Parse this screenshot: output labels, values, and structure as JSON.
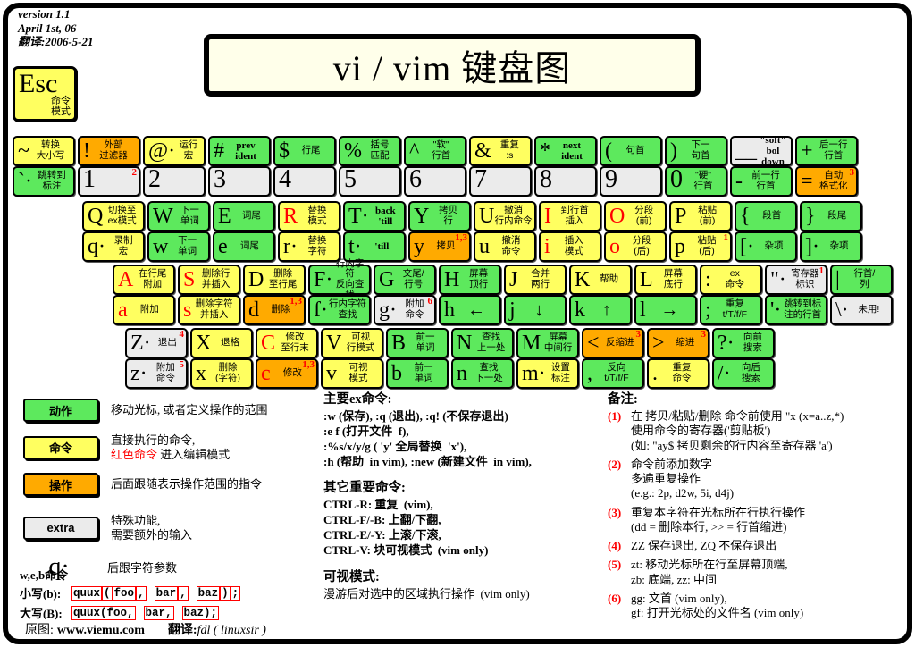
{
  "meta": {
    "line1": "version 1.1",
    "line2": "April 1st, 06",
    "line3": "翻译:2006-5-21"
  },
  "title": "vi / vim 键盘图",
  "esc": {
    "sym": "Esc",
    "label": "命令\n模式"
  },
  "colors": {
    "motion": "#5de95d",
    "command": "#ffff60",
    "operator": "#ffaa00",
    "extra": "#ebebeb",
    "red": "#ff0000"
  },
  "keyboard": {
    "rows": [
      [
        {
          "n": "tilde",
          "top": {
            "s": "~",
            "l": "转换\n大小写",
            "c": "y"
          },
          "bot": {
            "s": "`·",
            "l": "跳转到\n标注",
            "c": "g"
          }
        },
        {
          "n": "1",
          "top": {
            "s": "!",
            "l": "外部\n过滤器",
            "c": "o"
          },
          "bot": {
            "s": "1",
            "c": "n",
            "sup": "2"
          }
        },
        {
          "n": "2",
          "top": {
            "s": "@·",
            "l": "运行\n宏",
            "c": "y"
          },
          "bot": {
            "s": "2",
            "c": "n"
          }
        },
        {
          "n": "3",
          "top": {
            "s": "#",
            "l": "prev\nident",
            "c": "g"
          },
          "bot": {
            "s": "3",
            "c": "n"
          }
        },
        {
          "n": "4",
          "top": {
            "s": "$",
            "l": "行尾",
            "c": "g"
          },
          "bot": {
            "s": "4",
            "c": "n"
          }
        },
        {
          "n": "5",
          "top": {
            "s": "%",
            "l": "括号\n匹配",
            "c": "g"
          },
          "bot": {
            "s": "5",
            "c": "n"
          }
        },
        {
          "n": "6",
          "top": {
            "s": "^",
            "l": "\"软\"\n行首",
            "c": "g"
          },
          "bot": {
            "s": "6",
            "c": "n"
          }
        },
        {
          "n": "7",
          "top": {
            "s": "&",
            "l": "重复\n:s",
            "c": "y"
          },
          "bot": {
            "s": "7",
            "c": "n"
          }
        },
        {
          "n": "8",
          "top": {
            "s": "*",
            "l": "next\nident",
            "c": "g"
          },
          "bot": {
            "s": "8",
            "c": "n"
          }
        },
        {
          "n": "9",
          "top": {
            "s": "(",
            "l": "句首",
            "c": "g"
          },
          "bot": {
            "s": "9",
            "c": "n"
          }
        },
        {
          "n": "0",
          "top": {
            "s": ")",
            "l": "下一\n句首",
            "c": "g"
          },
          "bot": {
            "s": "0",
            "l": "\"硬\"\n行首",
            "c": "g"
          }
        },
        {
          "n": "minus",
          "top": {
            "s": "__",
            "l": "\"soft\" bol\ndown",
            "c": "e"
          },
          "bot": {
            "s": "-",
            "l": "前一行\n行首",
            "c": "g"
          }
        },
        {
          "n": "equals",
          "top": {
            "s": "+",
            "l": "后一行\n行首",
            "c": "g"
          },
          "bot": {
            "s": "=",
            "l": "自动\n格式化",
            "c": "o",
            "sup": "3"
          }
        }
      ],
      [
        {
          "n": "q",
          "top": {
            "s": "Q",
            "l": "切换至\nex模式",
            "c": "y"
          },
          "bot": {
            "s": "q·",
            "l": "录制\n宏",
            "c": "y"
          }
        },
        {
          "n": "w",
          "top": {
            "s": "W",
            "l": "下一\n单词",
            "c": "g"
          },
          "bot": {
            "s": "w",
            "l": "下一\n单词",
            "c": "g"
          }
        },
        {
          "n": "e",
          "top": {
            "s": "E",
            "l": "词尾",
            "c": "g"
          },
          "bot": {
            "s": "e",
            "l": "词尾",
            "c": "g"
          }
        },
        {
          "n": "r",
          "top": {
            "s": "R",
            "l": "替换\n模式",
            "c": "y",
            "red": true
          },
          "bot": {
            "s": "r·",
            "l": "替换\n字符",
            "c": "y"
          }
        },
        {
          "n": "t",
          "top": {
            "s": "T·",
            "l": "back\n'till",
            "c": "g"
          },
          "bot": {
            "s": "t·",
            "l": "'till",
            "c": "g"
          }
        },
        {
          "n": "y",
          "top": {
            "s": "Y",
            "l": "拷贝\n行",
            "c": "g"
          },
          "bot": {
            "s": "y",
            "l": "拷贝",
            "c": "o",
            "sup": "1,3"
          }
        },
        {
          "n": "u",
          "top": {
            "s": "U",
            "l": "撤消\n行内命令",
            "c": "y"
          },
          "bot": {
            "s": "u",
            "l": "撤消\n命令",
            "c": "y"
          }
        },
        {
          "n": "i",
          "top": {
            "s": "I",
            "l": "到行首\n插入",
            "c": "y",
            "red": true
          },
          "bot": {
            "s": "i",
            "l": "插入\n模式",
            "c": "y",
            "red": true
          }
        },
        {
          "n": "o",
          "top": {
            "s": "O",
            "l": "分段\n(前)",
            "c": "y",
            "red": true
          },
          "bot": {
            "s": "o",
            "l": "分段\n(后)",
            "c": "y",
            "red": true
          }
        },
        {
          "n": "p",
          "top": {
            "s": "P",
            "l": "粘贴\n(前)",
            "c": "y"
          },
          "bot": {
            "s": "p",
            "l": "粘贴\n(后)",
            "c": "y",
            "sup": "1"
          }
        },
        {
          "n": "bracket-left",
          "top": {
            "s": "{",
            "l": "段首",
            "c": "g"
          },
          "bot": {
            "s": "[·",
            "l": "杂项",
            "c": "g"
          }
        },
        {
          "n": "bracket-right",
          "top": {
            "s": "}",
            "l": "段尾",
            "c": "g"
          },
          "bot": {
            "s": "]·",
            "l": "杂项",
            "c": "g"
          }
        }
      ],
      [
        {
          "n": "a",
          "top": {
            "s": "A",
            "l": "在行尾\n附加",
            "c": "y",
            "red": true
          },
          "bot": {
            "s": "a",
            "l": "附加",
            "c": "y",
            "red": true
          }
        },
        {
          "n": "s",
          "top": {
            "s": "S",
            "l": "删除行\n并插入",
            "c": "y",
            "red": true
          },
          "bot": {
            "s": "s",
            "l": "删除字符\n并插入",
            "c": "y",
            "red": true
          }
        },
        {
          "n": "d",
          "top": {
            "s": "D",
            "l": "删除\n至行尾",
            "c": "y"
          },
          "bot": {
            "s": "d",
            "l": "删除",
            "c": "o",
            "sup": "1,3"
          }
        },
        {
          "n": "f",
          "top": {
            "s": "F·",
            "l": "行内字符\n反向查找",
            "c": "g"
          },
          "bot": {
            "s": "f·",
            "l": "行内字符\n查找",
            "c": "g"
          }
        },
        {
          "n": "g",
          "top": {
            "s": "G",
            "l": "文尾/\n行号",
            "c": "g"
          },
          "bot": {
            "s": "g·",
            "l": "附加\n命令",
            "c": "e",
            "sup": "6"
          }
        },
        {
          "n": "h",
          "top": {
            "s": "H",
            "l": "屏幕\n顶行",
            "c": "g"
          },
          "bot": {
            "s": "h",
            "l": "←",
            "c": "g"
          }
        },
        {
          "n": "j",
          "top": {
            "s": "J",
            "l": "合并\n两行",
            "c": "y"
          },
          "bot": {
            "s": "j",
            "l": "↓",
            "c": "g"
          }
        },
        {
          "n": "k",
          "top": {
            "s": "K",
            "l": "帮助",
            "c": "y"
          },
          "bot": {
            "s": "k",
            "l": "↑",
            "c": "g"
          }
        },
        {
          "n": "l",
          "top": {
            "s": "L",
            "l": "屏幕\n底行",
            "c": "y"
          },
          "bot": {
            "s": "l",
            "l": "→",
            "c": "g"
          }
        },
        {
          "n": "colon",
          "top": {
            "s": ":",
            "l": "ex\n命令",
            "c": "y"
          },
          "bot": {
            "s": ";",
            "l": "重复\nt/T/f/F",
            "c": "g"
          }
        },
        {
          "n": "quote",
          "top": {
            "s": "\"·",
            "l": "寄存器\n标识",
            "c": "e",
            "sup": "1"
          },
          "bot": {
            "s": "'·",
            "l": "跳转到标\n注的行首",
            "c": "g"
          }
        },
        {
          "n": "pipe",
          "top": {
            "s": "|",
            "l": "行首/\n列",
            "c": "g"
          },
          "bot": {
            "s": "\\·",
            "l": "未用!",
            "c": "e"
          }
        }
      ],
      [
        {
          "n": "z",
          "top": {
            "s": "Z·",
            "l": "退出",
            "c": "e",
            "sup": "4"
          },
          "bot": {
            "s": "z·",
            "l": "附加\n命令",
            "c": "e",
            "sup": "5"
          }
        },
        {
          "n": "x",
          "top": {
            "s": "X",
            "l": "退格",
            "c": "y"
          },
          "bot": {
            "s": "x",
            "l": "删除\n(字符)",
            "c": "y"
          }
        },
        {
          "n": "c",
          "top": {
            "s": "C",
            "l": "修改\n至行末",
            "c": "y",
            "red": true
          },
          "bot": {
            "s": "c",
            "l": "修改",
            "c": "o",
            "red": true,
            "sup": "1,3"
          }
        },
        {
          "n": "v",
          "top": {
            "s": "V",
            "l": "可视\n行模式",
            "c": "y"
          },
          "bot": {
            "s": "v",
            "l": "可视\n模式",
            "c": "y"
          }
        },
        {
          "n": "b",
          "top": {
            "s": "B",
            "l": "前一\n单词",
            "c": "g"
          },
          "bot": {
            "s": "b",
            "l": "前一\n单词",
            "c": "g"
          }
        },
        {
          "n": "n",
          "top": {
            "s": "N",
            "l": "查找\n上一处",
            "c": "g"
          },
          "bot": {
            "s": "n",
            "l": "查找\n下一处",
            "c": "g"
          }
        },
        {
          "n": "m",
          "top": {
            "s": "M",
            "l": "屏幕\n中间行",
            "c": "g"
          },
          "bot": {
            "s": "m·",
            "l": "设置\n标注",
            "c": "y"
          }
        },
        {
          "n": "comma",
          "top": {
            "s": "<",
            "l": "反缩进",
            "c": "o",
            "sup": "3"
          },
          "bot": {
            "s": ",",
            "l": "反向\nt/T/f/F",
            "c": "g"
          }
        },
        {
          "n": "period",
          "top": {
            "s": ">",
            "l": "缩进",
            "c": "o",
            "sup": "3"
          },
          "bot": {
            "s": ".",
            "l": "重复\n命令",
            "c": "y"
          }
        },
        {
          "n": "question",
          "top": {
            "s": "?·",
            "l": "向前\n搜索",
            "c": "g"
          },
          "bot": {
            "s": "/·",
            "l": "向后\n搜索",
            "c": "g"
          }
        }
      ]
    ]
  },
  "legend": {
    "action": {
      "label": "动作",
      "desc": "移动光标, 或者定义操作的范围"
    },
    "command": {
      "label": "命令",
      "desc1": "直接执行的命令,",
      "red": "红色命令",
      "desc2": " 进入编辑模式"
    },
    "operator": {
      "label": "操作",
      "desc": "后面跟随表示操作范围的指令"
    },
    "extra": {
      "label": "extra",
      "desc": "特殊功能,\n需要额外的输入"
    },
    "chararg": {
      "sym": "q·",
      "desc": "后跟字符参数"
    }
  },
  "ex_sections": [
    {
      "heading": "主要ex命令:",
      "lines": [
        ":w (保存), :q (退出), :q! (不保存退出)",
        ":e f (打开文件  f),",
        ":%s/x/y/g ( 'y' 全局替换  'x'),",
        ":h (帮助  in vim), :new (新建文件  in vim),"
      ]
    },
    {
      "heading": "其它重要命令:",
      "lines": [
        "CTRL-R: 重复  (vim),",
        "CTRL-F/-B: 上翻/下翻,",
        "CTRL-E/-Y: 上滚/下滚,",
        "CTRL-V: 块可视模式  (vim only)"
      ]
    },
    {
      "heading": "可视模式:",
      "lines": [
        "漫游后对选中的区域执行操作  (vim only)"
      ]
    }
  ],
  "notes": {
    "heading": "备注:",
    "items": [
      {
        "num": "(1)",
        "lines": "在 拷贝/粘贴/删除 命令前使用 \"x (x=a..z,*)\n使用命令的寄存器('剪贴板')\n(如: \"ay$ 拷贝剩余的行内容至寄存器 'a')"
      },
      {
        "num": "(2)",
        "lines": "命令前添加数字\n多遍重复操作\n(e.g.: 2p, d2w, 5i, d4j)"
      },
      {
        "num": "(3)",
        "lines": "重复本字符在光标所在行执行操作\n(dd = 删除本行, >> = 行首缩进)"
      },
      {
        "num": "(4)",
        "lines": "ZZ 保存退出, ZQ 不保存退出"
      },
      {
        "num": "(5)",
        "lines": "zt: 移动光标所在行至屏幕顶端,\nzb: 底端, zz: 中间"
      },
      {
        "num": "(6)",
        "lines": "gg: 文首  (vim only),\ngf: 打开光标处的文件名  (vim only)"
      }
    ]
  },
  "web": {
    "heading": "w,e,b命令",
    "rows": [
      {
        "label": "小写(b):",
        "segments": [
          "quux",
          "(",
          "foo",
          ",",
          " ",
          "bar",
          ",",
          " ",
          "baz",
          ")",
          ";"
        ]
      },
      {
        "label": "大写(B):",
        "segments": [
          "quux(foo,",
          " ",
          "bar,",
          " ",
          "baz);"
        ]
      }
    ]
  },
  "footer": {
    "orig_label": "原图:",
    "site": "www.viemu.com",
    "trans_label": "翻译:",
    "trans_value": "fdl ( linuxsir )"
  }
}
